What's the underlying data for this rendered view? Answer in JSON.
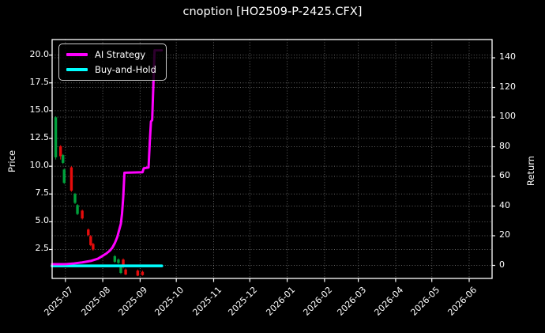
{
  "title": "cnoption [HO2509-P-2425.CFX]",
  "colors": {
    "background": "#000000",
    "text": "#ffffff",
    "spine": "#ffffff",
    "grid": "rgba(255,255,255,0.38)",
    "ai_strategy": "#ff00ff",
    "buy_and_hold": "#00ffff",
    "candle_up": "#00a13c",
    "candle_down": "#e60c0c"
  },
  "legend": {
    "items": [
      {
        "label": "AI Strategy",
        "color_key": "ai_strategy"
      },
      {
        "label": "Buy-and-Hold",
        "color_key": "buy_and_hold"
      }
    ]
  },
  "chart_data": {
    "type": "mixed",
    "title": "cnoption [HO2509-P-2425.CFX]",
    "left_axis": {
      "label": "Price",
      "ticks": [
        "20.0",
        "17.5",
        "15.0",
        "12.5",
        "10.0",
        "7.5",
        "5.0",
        "2.5"
      ],
      "range": [
        -0.1,
        21.4
      ],
      "grid": true
    },
    "right_axis": {
      "label": "Return",
      "ticks": [
        "140",
        "120",
        "100",
        "80",
        "60",
        "40",
        "20",
        "0"
      ],
      "range": [
        -8.8,
        152.3
      ],
      "grid": true
    },
    "x_axis": {
      "ticks": [
        "2025-07",
        "2025-08",
        "2025-09",
        "2025-10",
        "2025-11",
        "2025-12",
        "2026-01",
        "2026-02",
        "2026-03",
        "2026-04",
        "2026-05",
        "2026-06"
      ],
      "tick_dates": [
        "2025-07-01",
        "2025-08-01",
        "2025-09-01",
        "2025-10-01",
        "2025-11-01",
        "2025-12-01",
        "2026-01-01",
        "2026-02-01",
        "2026-03-01",
        "2026-04-01",
        "2026-05-01",
        "2026-06-01"
      ],
      "range": [
        "2025-06-20",
        "2026-06-20"
      ],
      "label_rotation_deg": 45,
      "grid": true
    },
    "legend_position": "upper left",
    "series": [
      {
        "name": "AI Strategy",
        "type": "line",
        "axis": "return",
        "color_key": "ai_strategy",
        "line_width": 3,
        "points": [
          [
            "2025-06-20",
            0.8
          ],
          [
            "2025-07-02",
            0.9
          ],
          [
            "2025-07-08",
            1.3
          ],
          [
            "2025-07-15",
            2.0
          ],
          [
            "2025-07-22",
            3.0
          ],
          [
            "2025-07-28",
            4.5
          ],
          [
            "2025-08-01",
            6.5
          ],
          [
            "2025-08-04",
            8.0
          ],
          [
            "2025-08-07",
            10.0
          ],
          [
            "2025-08-09",
            12.0
          ],
          [
            "2025-08-11",
            15.0
          ],
          [
            "2025-08-13",
            19.0
          ],
          [
            "2025-08-14",
            22.0
          ],
          [
            "2025-08-15",
            25.0
          ],
          [
            "2025-08-16",
            28.0
          ],
          [
            "2025-08-17",
            35.0
          ],
          [
            "2025-08-18",
            46.0
          ],
          [
            "2025-08-19",
            62.5
          ],
          [
            "2025-09-03",
            62.8
          ],
          [
            "2025-09-04",
            65.5
          ],
          [
            "2025-09-08",
            66.0
          ],
          [
            "2025-09-09",
            83.0
          ],
          [
            "2025-09-10",
            97.0
          ],
          [
            "2025-09-11",
            98.0
          ],
          [
            "2025-09-12",
            122.0
          ],
          [
            "2025-09-13",
            145.0
          ],
          [
            "2025-09-19",
            145.0
          ]
        ]
      },
      {
        "name": "Buy-and-Hold",
        "type": "line",
        "axis": "return",
        "color_key": "buy_and_hold",
        "line_width": 3.5,
        "points": [
          [
            "2025-06-20",
            -0.3
          ],
          [
            "2025-09-19",
            -0.3
          ]
        ]
      },
      {
        "name": "Price",
        "type": "candlestick",
        "axis": "price",
        "candles": [
          {
            "date": "2025-06-23",
            "open": 10.8,
            "close": 14.4,
            "high": 14.5,
            "low": 10.6
          },
          {
            "date": "2025-06-27",
            "open": 11.8,
            "close": 10.9,
            "high": 11.9,
            "low": 10.6
          },
          {
            "date": "2025-06-29",
            "open": 10.3,
            "close": 11.0,
            "high": 11.1,
            "low": 10.2
          },
          {
            "date": "2025-06-30",
            "open": 8.5,
            "close": 9.7,
            "high": 9.8,
            "low": 8.4
          },
          {
            "date": "2025-07-06",
            "open": 9.9,
            "close": 7.8,
            "high": 10.0,
            "low": 7.7
          },
          {
            "date": "2025-07-09",
            "open": 6.7,
            "close": 7.5,
            "high": 7.6,
            "low": 6.6
          },
          {
            "date": "2025-07-11",
            "open": 5.7,
            "close": 6.5,
            "high": 6.6,
            "low": 5.6
          },
          {
            "date": "2025-07-15",
            "open": 6.0,
            "close": 5.3,
            "high": 6.1,
            "low": 5.2
          },
          {
            "date": "2025-07-20",
            "open": 4.3,
            "close": 3.8,
            "high": 4.4,
            "low": 3.7
          },
          {
            "date": "2025-07-22",
            "open": 3.7,
            "close": 2.9,
            "high": 3.8,
            "low": 2.8
          },
          {
            "date": "2025-07-24",
            "open": 3.0,
            "close": 2.5,
            "high": 3.1,
            "low": 2.4
          },
          {
            "date": "2025-08-11",
            "open": 1.4,
            "close": 1.9,
            "high": 2.0,
            "low": 1.3
          },
          {
            "date": "2025-08-14",
            "open": 1.3,
            "close": 1.6,
            "high": 1.7,
            "low": 1.2
          },
          {
            "date": "2025-08-16",
            "open": 0.4,
            "close": 0.9,
            "high": 1.0,
            "low": 0.3
          },
          {
            "date": "2025-08-18",
            "open": 1.6,
            "close": 0.9,
            "high": 1.7,
            "low": 0.8
          },
          {
            "date": "2025-08-20",
            "open": 0.7,
            "close": 0.25,
            "high": 0.8,
            "low": 0.2
          },
          {
            "date": "2025-08-30",
            "open": 0.6,
            "close": 0.15,
            "high": 0.7,
            "low": 0.1
          },
          {
            "date": "2025-09-03",
            "open": 0.5,
            "close": 0.2,
            "high": 0.6,
            "low": 0.15
          }
        ]
      }
    ]
  }
}
